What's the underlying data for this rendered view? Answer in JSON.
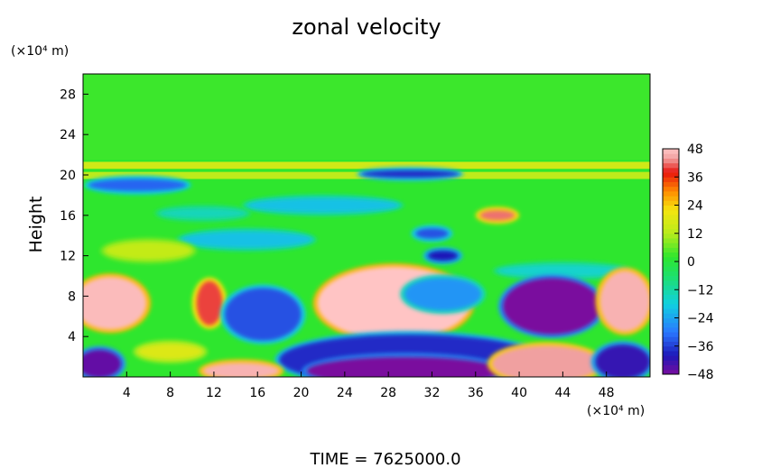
{
  "chart_data": {
    "type": "heatmap",
    "title": "zonal velocity",
    "ylabel": "Height",
    "y_units": "(×10⁴ m)",
    "x_units": "(×10⁴ m)",
    "footer": "TIME  =  7625000.0",
    "xlim": [
      0,
      52
    ],
    "ylim": [
      0,
      30
    ],
    "x_ticks": [
      4,
      8,
      12,
      16,
      20,
      24,
      28,
      32,
      36,
      40,
      44,
      48
    ],
    "y_ticks": [
      4,
      8,
      12,
      16,
      20,
      24,
      28
    ],
    "colorbar": {
      "min": -48,
      "max": 48,
      "ticks": [
        48,
        36,
        24,
        12,
        0,
        -12,
        -24,
        -36,
        -48
      ],
      "stops": [
        {
          "v": -48,
          "color": "#7a0e9e"
        },
        {
          "v": -40,
          "color": "#1d17b8"
        },
        {
          "v": -30,
          "color": "#2a78ff"
        },
        {
          "v": -18,
          "color": "#10d0e0"
        },
        {
          "v": -6,
          "color": "#1ee06a"
        },
        {
          "v": 2,
          "color": "#2ee62e"
        },
        {
          "v": 12,
          "color": "#b7ec1c"
        },
        {
          "v": 22,
          "color": "#f5e50f"
        },
        {
          "v": 30,
          "color": "#ff8c00"
        },
        {
          "v": 38,
          "color": "#e8140c"
        },
        {
          "v": 44,
          "color": "#f0a0a0"
        },
        {
          "v": 48,
          "color": "#ffc4c4"
        }
      ]
    },
    "background_value": 2,
    "regions": [
      {
        "kind": "rect",
        "x0": 0,
        "x1": 52,
        "y0": 21.5,
        "y1": 30,
        "v": 3
      },
      {
        "kind": "rect",
        "x0": 0,
        "x1": 52,
        "y0": 20.6,
        "y1": 21.3,
        "v": 16
      },
      {
        "kind": "rect",
        "x0": 0,
        "x1": 52,
        "y0": 19.6,
        "y1": 20.3,
        "v": 13
      },
      {
        "kind": "ellipse",
        "cx": 5,
        "cy": 19.0,
        "rx": 4.5,
        "ry": 0.6,
        "v": -32
      },
      {
        "kind": "ellipse",
        "cx": 30,
        "cy": 20.1,
        "rx": 4.5,
        "ry": 0.35,
        "v": -38
      },
      {
        "kind": "ellipse",
        "cx": 22,
        "cy": 17.0,
        "rx": 7,
        "ry": 0.7,
        "v": -20
      },
      {
        "kind": "ellipse",
        "cx": 11,
        "cy": 16.2,
        "rx": 4,
        "ry": 0.5,
        "v": -14
      },
      {
        "kind": "ellipse",
        "cx": 38,
        "cy": 16.0,
        "rx": 1.6,
        "ry": 0.5,
        "v": 42
      },
      {
        "kind": "ellipse",
        "cx": 32,
        "cy": 14.2,
        "rx": 1.5,
        "ry": 0.5,
        "v": -34
      },
      {
        "kind": "ellipse",
        "cx": 15,
        "cy": 13.6,
        "rx": 6,
        "ry": 0.8,
        "v": -20
      },
      {
        "kind": "ellipse",
        "cx": 33,
        "cy": 12.0,
        "rx": 1.4,
        "ry": 0.5,
        "v": -40
      },
      {
        "kind": "ellipse",
        "cx": 6,
        "cy": 12.5,
        "rx": 4,
        "ry": 0.9,
        "v": 14
      },
      {
        "kind": "ellipse",
        "cx": 44,
        "cy": 10.5,
        "rx": 6,
        "ry": 0.6,
        "v": -16
      },
      {
        "kind": "ellipse",
        "cx": 2.5,
        "cy": 7.3,
        "rx": 3.3,
        "ry": 2.6,
        "v": 47
      },
      {
        "kind": "ellipse",
        "cx": 11.6,
        "cy": 7.3,
        "rx": 1.2,
        "ry": 2.2,
        "v": 40
      },
      {
        "kind": "ellipse",
        "cx": 16.5,
        "cy": 6.2,
        "rx": 3.5,
        "ry": 2.6,
        "v": -34
      },
      {
        "kind": "ellipse",
        "cx": 28.5,
        "cy": 7.3,
        "rx": 7,
        "ry": 3.6,
        "v": 48
      },
      {
        "kind": "ellipse",
        "cx": 33,
        "cy": 8.2,
        "rx": 3.5,
        "ry": 1.6,
        "v": -26
      },
      {
        "kind": "ellipse",
        "cx": 43,
        "cy": 7.0,
        "rx": 4.5,
        "ry": 2.8,
        "v": -48
      },
      {
        "kind": "ellipse",
        "cx": 49.7,
        "cy": 7.5,
        "rx": 2.3,
        "ry": 3.0,
        "v": 46
      },
      {
        "kind": "ellipse",
        "cx": 30.0,
        "cy": 1.7,
        "rx": 12,
        "ry": 2.5,
        "v": -38
      },
      {
        "kind": "ellipse",
        "cx": 29.5,
        "cy": 0.6,
        "rx": 9,
        "ry": 1.4,
        "v": -48
      },
      {
        "kind": "ellipse",
        "cx": 14.5,
        "cy": 0.6,
        "rx": 3.5,
        "ry": 0.8,
        "v": 46
      },
      {
        "kind": "ellipse",
        "cx": 42.5,
        "cy": 1.3,
        "rx": 5,
        "ry": 1.8,
        "v": 44
      },
      {
        "kind": "ellipse",
        "cx": 1.5,
        "cy": 1.3,
        "rx": 2,
        "ry": 1.4,
        "v": -46
      },
      {
        "kind": "ellipse",
        "cx": 49.5,
        "cy": 1.5,
        "rx": 2.5,
        "ry": 1.7,
        "v": -42
      },
      {
        "kind": "ellipse",
        "cx": 8,
        "cy": 2.5,
        "rx": 3,
        "ry": 0.8,
        "v": 18
      }
    ]
  }
}
